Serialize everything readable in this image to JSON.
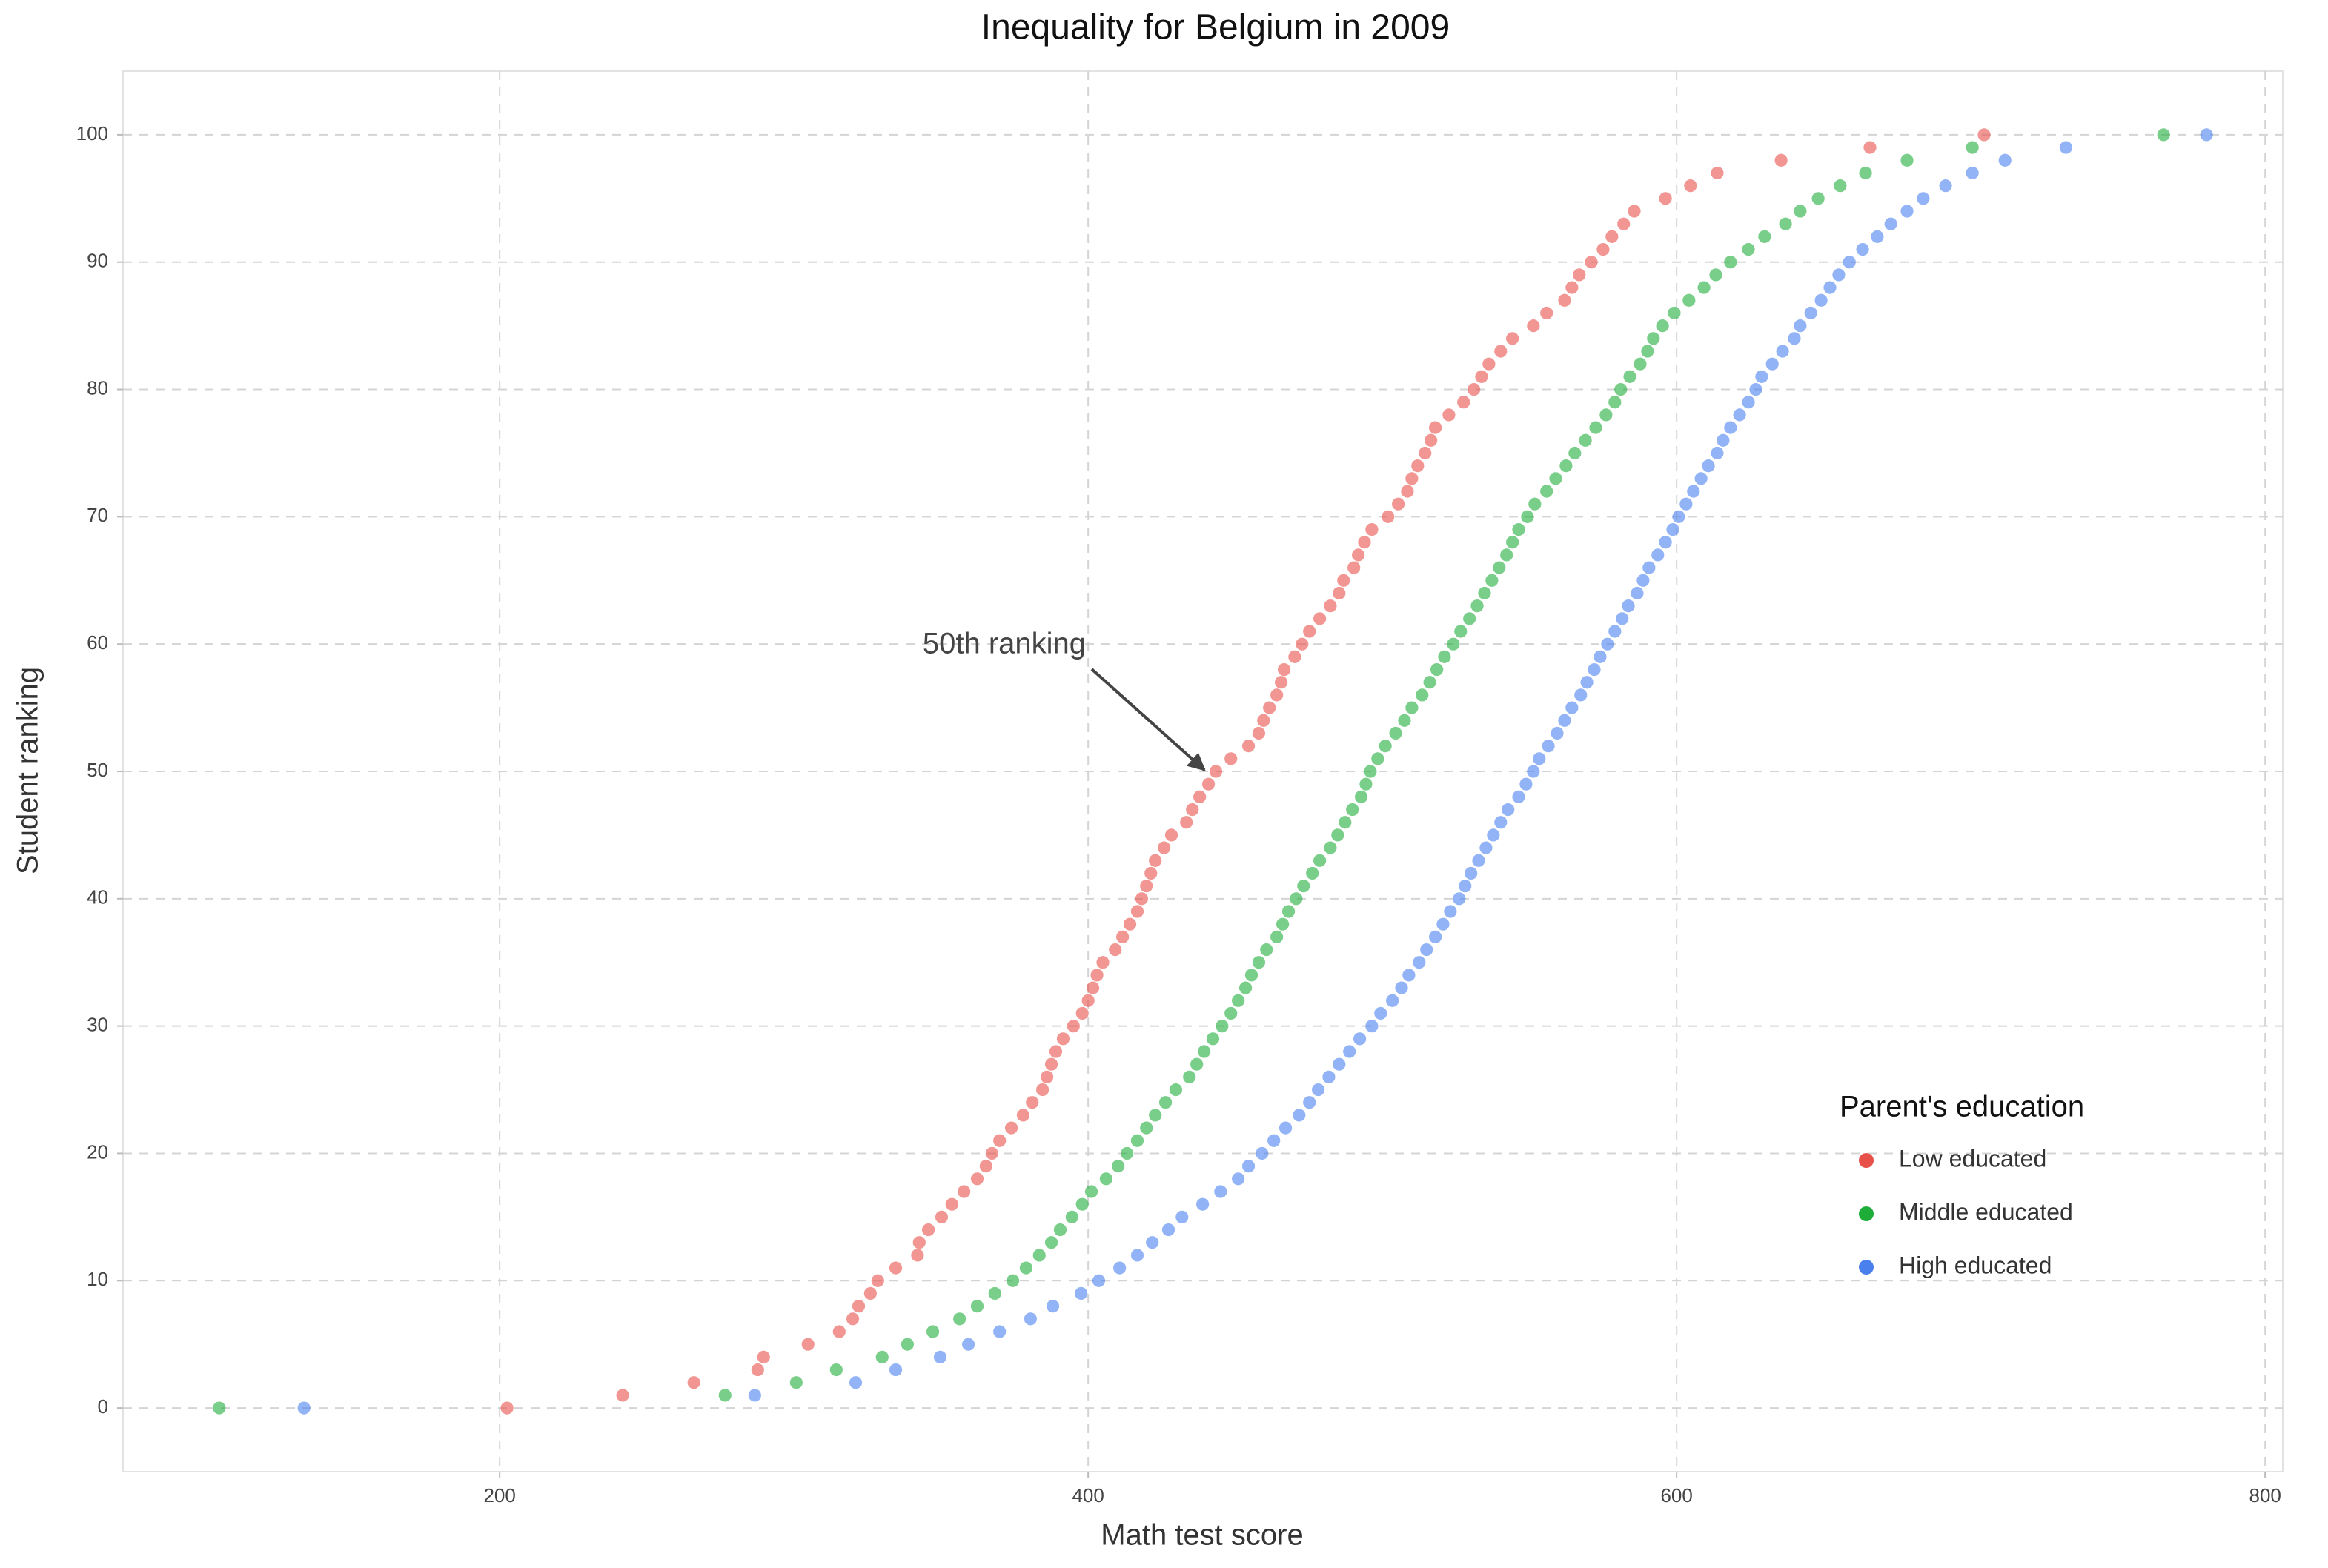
{
  "chart_data": {
    "type": "scatter",
    "title": "Inequality for Belgium in 2009",
    "x_label": "Math test score",
    "y_label": "Student ranking",
    "xlim": [
      72,
      806
    ],
    "ylim": [
      -5,
      105
    ],
    "xticks": [
      200,
      400,
      600,
      800
    ],
    "yticks": [
      0,
      10,
      20,
      30,
      40,
      50,
      60,
      70,
      80,
      90,
      100
    ],
    "grid": true,
    "legend": {
      "title": "Parent's education",
      "position": "lower right"
    },
    "annotations": [
      {
        "text": "50th ranking",
        "x": 440,
        "y": 50
      }
    ],
    "series": [
      {
        "name": "Low educated",
        "color": "#e8504a",
        "x": [
          202.5,
          241.8,
          266,
          287.7,
          289.7,
          304.8,
          315.4,
          320,
          322,
          326,
          328.5,
          334.6,
          342,
          342.6,
          345.7,
          350.2,
          353.7,
          357.8,
          362.3,
          365.3,
          367.3,
          369.9,
          373.9,
          377.9,
          381,
          384.5,
          386,
          387.5,
          389,
          391.5,
          395,
          398,
          400,
          401.6,
          403,
          405,
          409.2,
          411.7,
          414.2,
          416.7,
          418.2,
          419.8,
          421.3,
          422.8,
          425.8,
          428.3,
          433.4,
          435.4,
          437.9,
          440.9,
          443.4,
          448.5,
          454.5,
          458,
          459.6,
          461.6,
          464.1,
          465.6,
          466.6,
          470.2,
          472.7,
          475.2,
          478.7,
          482.3,
          485.3,
          486.8,
          490.3,
          491.8,
          493.9,
          496.4,
          501.9,
          505.4,
          508.5,
          510,
          512,
          514.5,
          516.5,
          518,
          522.6,
          527.6,
          531.1,
          533.7,
          536.2,
          540.2,
          544.2,
          551.3,
          555.8,
          561.9,
          564.4,
          566.9,
          571,
          575,
          578,
          582,
          585.6,
          596.2,
          604.7,
          613.8,
          635.5,
          665.7,
          704.5
        ],
        "values": [
          0,
          1,
          2,
          3,
          4,
          5,
          6,
          7,
          8,
          9,
          10,
          11,
          12,
          13,
          14,
          15,
          16,
          17,
          18,
          19,
          20,
          21,
          22,
          23,
          24,
          25,
          26,
          27,
          28,
          29,
          30,
          31,
          32,
          33,
          34,
          35,
          36,
          37,
          38,
          39,
          40,
          41,
          42,
          43,
          44,
          45,
          46,
          47,
          48,
          49,
          50,
          51,
          52,
          53,
          54,
          55,
          56,
          57,
          58,
          59,
          60,
          61,
          62,
          63,
          64,
          65,
          66,
          67,
          68,
          69,
          70,
          71,
          72,
          73,
          74,
          75,
          76,
          77,
          78,
          79,
          80,
          81,
          82,
          83,
          84,
          85,
          86,
          87,
          88,
          89,
          90,
          91,
          92,
          93,
          94,
          95,
          96,
          97,
          98,
          99,
          100
        ]
      },
      {
        "name": "Middle educated",
        "color": "#1fad3a",
        "x": [
          104.7,
          276.6,
          300.8,
          314.4,
          330,
          338.6,
          347.2,
          356.3,
          362.3,
          368.3,
          374.4,
          378.9,
          383.4,
          387.5,
          390.5,
          394.5,
          398,
          401.1,
          406.1,
          410.2,
          413.2,
          416.7,
          419.8,
          422.8,
          426.3,
          429.8,
          434.4,
          436.9,
          439.4,
          442.4,
          445.5,
          448.5,
          451,
          453.5,
          455.5,
          458,
          460.6,
          464.1,
          466.1,
          468.1,
          470.7,
          473.2,
          476.2,
          478.7,
          482.3,
          484.8,
          487.3,
          489.8,
          492.8,
          494.4,
          495.9,
          498.4,
          501,
          504.5,
          507.5,
          510,
          513.5,
          516.1,
          518.5,
          521.1,
          524.1,
          526.6,
          529.6,
          532.2,
          534.7,
          537.2,
          539.7,
          542.2,
          544.2,
          546.3,
          549.3,
          551.8,
          555.8,
          558.9,
          562.4,
          565.4,
          569,
          572.5,
          576,
          579,
          581,
          584.1,
          587.6,
          590.1,
          592.1,
          595.2,
          599.2,
          604.2,
          609.3,
          613.3,
          618.3,
          624.4,
          629.9,
          637,
          642,
          648.1,
          655.6,
          664.2,
          678.3,
          700.5,
          765.5
        ],
        "values": [
          0,
          1,
          2,
          3,
          4,
          5,
          6,
          7,
          8,
          9,
          10,
          11,
          12,
          13,
          14,
          15,
          16,
          17,
          18,
          19,
          20,
          21,
          22,
          23,
          24,
          25,
          26,
          27,
          28,
          29,
          30,
          31,
          32,
          33,
          34,
          35,
          36,
          37,
          38,
          39,
          40,
          41,
          42,
          43,
          44,
          45,
          46,
          47,
          48,
          49,
          50,
          51,
          52,
          53,
          54,
          55,
          56,
          57,
          58,
          59,
          60,
          61,
          62,
          63,
          64,
          65,
          66,
          67,
          68,
          69,
          70,
          71,
          72,
          73,
          74,
          75,
          76,
          77,
          78,
          79,
          80,
          81,
          82,
          83,
          84,
          85,
          86,
          87,
          88,
          89,
          90,
          91,
          92,
          93,
          94,
          95,
          96,
          97,
          98,
          99,
          100
        ]
      },
      {
        "name": "High educated",
        "color": "#4a80ee",
        "x": [
          133.5,
          286.7,
          321,
          334.6,
          349.7,
          359.3,
          369.9,
          380.4,
          388,
          397.6,
          403.6,
          410.7,
          416.7,
          421.8,
          427.3,
          431.9,
          438.9,
          445,
          451,
          454.5,
          459.1,
          463.1,
          467.1,
          471.7,
          475.2,
          478.2,
          481.8,
          485.3,
          488.8,
          492.3,
          496.4,
          499.4,
          503.4,
          506.5,
          509,
          512.5,
          515,
          518,
          520.6,
          523.1,
          526.1,
          528.1,
          530.1,
          532.7,
          535.2,
          537.7,
          540.2,
          542.7,
          546.3,
          548.8,
          551.3,
          553.3,
          556.4,
          559.4,
          561.9,
          564.4,
          567.4,
          569.5,
          572,
          574,
          576.5,
          579,
          581.5,
          583.6,
          586.6,
          588.6,
          590.6,
          593.6,
          596.2,
          598.7,
          600.7,
          603.2,
          605.7,
          608.3,
          610.8,
          613.8,
          615.8,
          618.3,
          621.4,
          624.4,
          626.9,
          628.9,
          632.5,
          636,
          640,
          642,
          645.6,
          649.1,
          652.1,
          655.1,
          658.7,
          663.2,
          668.2,
          672.8,
          678.3,
          683.8,
          691.4,
          700.5,
          711.6,
          732.3,
          780.1
        ],
        "values": [
          0,
          1,
          2,
          3,
          4,
          5,
          6,
          7,
          8,
          9,
          10,
          11,
          12,
          13,
          14,
          15,
          16,
          17,
          18,
          19,
          20,
          21,
          22,
          23,
          24,
          25,
          26,
          27,
          28,
          29,
          30,
          31,
          32,
          33,
          34,
          35,
          36,
          37,
          38,
          39,
          40,
          41,
          42,
          43,
          44,
          45,
          46,
          47,
          48,
          49,
          50,
          51,
          52,
          53,
          54,
          55,
          56,
          57,
          58,
          59,
          60,
          61,
          62,
          63,
          64,
          65,
          66,
          67,
          68,
          69,
          70,
          71,
          72,
          73,
          74,
          75,
          76,
          77,
          78,
          79,
          80,
          81,
          82,
          83,
          84,
          85,
          86,
          87,
          88,
          89,
          90,
          91,
          92,
          93,
          94,
          95,
          96,
          97,
          98,
          99,
          100
        ]
      }
    ]
  }
}
